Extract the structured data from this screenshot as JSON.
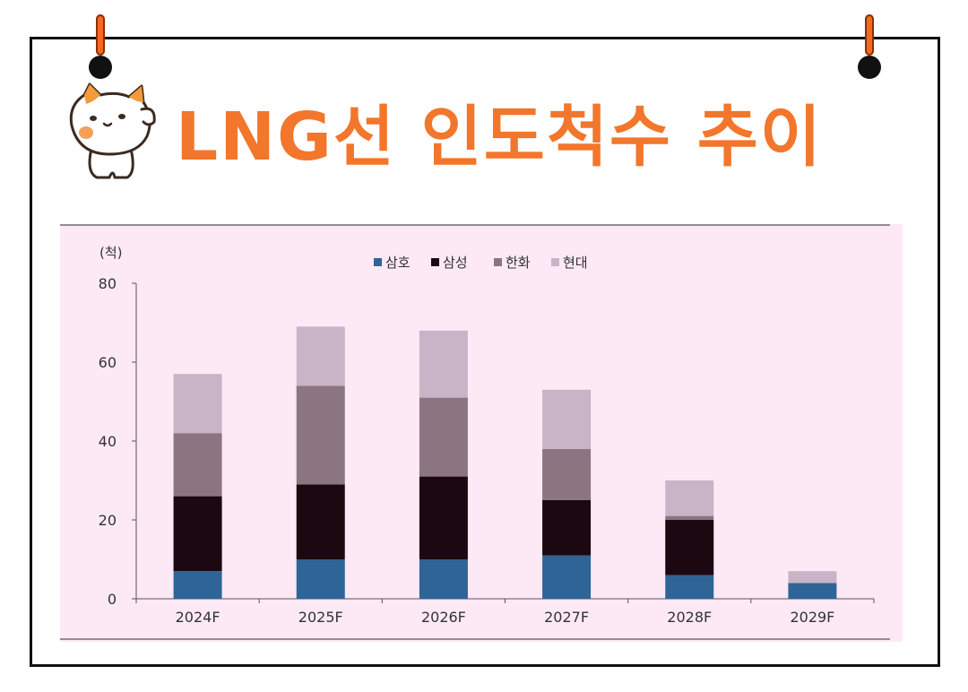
{
  "page": {
    "title": "LNG선 인도척수 추이"
  },
  "colors": {
    "title": "#f2762b",
    "chart_bg": "#fde9f5",
    "pin": "#f26a21"
  },
  "chart_data": {
    "type": "bar",
    "stacked": true,
    "title": "",
    "xlabel": "",
    "ylabel": "(척)",
    "ylim": [
      0,
      80
    ],
    "yticks": [
      0,
      20,
      40,
      60,
      80
    ],
    "categories": [
      "2024F",
      "2025F",
      "2026F",
      "2027F",
      "2028F",
      "2029F"
    ],
    "legend_position": "top-center",
    "series": [
      {
        "name": "삼호",
        "color": "#2e6496",
        "values": [
          7,
          10,
          10,
          11,
          6,
          4
        ]
      },
      {
        "name": "삼성",
        "color": "#1c0810",
        "values": [
          19,
          19,
          21,
          14,
          14,
          0
        ]
      },
      {
        "name": "한화",
        "color": "#8a7580",
        "values": [
          16,
          25,
          20,
          13,
          1,
          0
        ]
      },
      {
        "name": "현대",
        "color": "#c9b3c6",
        "values": [
          15,
          15,
          17,
          15,
          9,
          3
        ]
      }
    ]
  }
}
